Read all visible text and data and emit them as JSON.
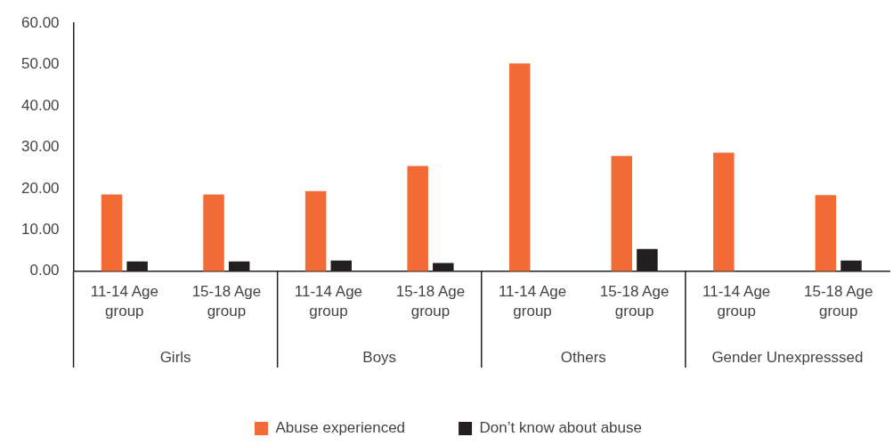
{
  "chart_data": {
    "type": "bar",
    "categories": [
      "11-14 Age group",
      "15-18 Age group",
      "11-14 Age group",
      "15-18 Age group",
      "11-14 Age group",
      "15-18 Age group",
      "11-14 Age group",
      "15-18 Age group"
    ],
    "series": [
      {
        "name": "Abuse experienced",
        "color": "#f26a35",
        "values": [
          18.6,
          18.6,
          19.4,
          25.5,
          50.3,
          27.9,
          28.7,
          18.4
        ]
      },
      {
        "name": "Don’t know about abuse",
        "color": "#231f20",
        "values": [
          2.4,
          2.4,
          2.6,
          2.0,
          0,
          5.4,
          0,
          2.6
        ]
      }
    ],
    "ylim": [
      0,
      60
    ],
    "yticks": [
      {
        "value": 0,
        "label": "0.00"
      },
      {
        "value": 10,
        "label": "10.00"
      },
      {
        "value": 20,
        "label": "20.00"
      },
      {
        "value": 30,
        "label": "30.00"
      },
      {
        "value": 40,
        "label": "40.00"
      },
      {
        "value": 50,
        "label": "50.00"
      },
      {
        "value": 60,
        "label": "60.00"
      }
    ],
    "annotations": [
      "Girls",
      "Boys",
      "Others",
      "Gender Unexpresssed"
    ],
    "grid": false,
    "legend": "bottom"
  }
}
